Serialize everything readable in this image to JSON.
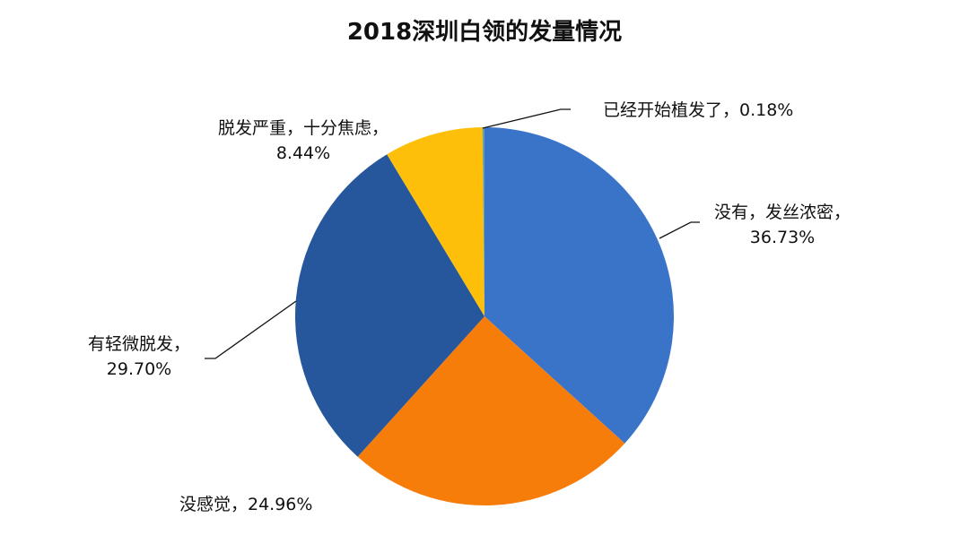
{
  "chart_data": {
    "type": "pie",
    "title": "2018深圳白领的发量情况",
    "start": "top",
    "direction": "clockwise",
    "slices": [
      {
        "label": "没有，发丝浓密",
        "value": 36.73,
        "text": "36.73%",
        "color": "#3a74c9"
      },
      {
        "label": "没感觉",
        "value": 24.96,
        "text": "24.96%",
        "color": "#f77d0b"
      },
      {
        "label": "有轻微脱发",
        "value": 29.7,
        "text": "29.70%",
        "color": "#26569b"
      },
      {
        "label": "脱发严重，十分焦虑",
        "value": 8.44,
        "text": "8.44%",
        "color": "#fdbf0a"
      },
      {
        "label": "已经开始植发了",
        "value": 0.18,
        "text": "0.18%",
        "color": "#6c9fa0"
      }
    ]
  }
}
